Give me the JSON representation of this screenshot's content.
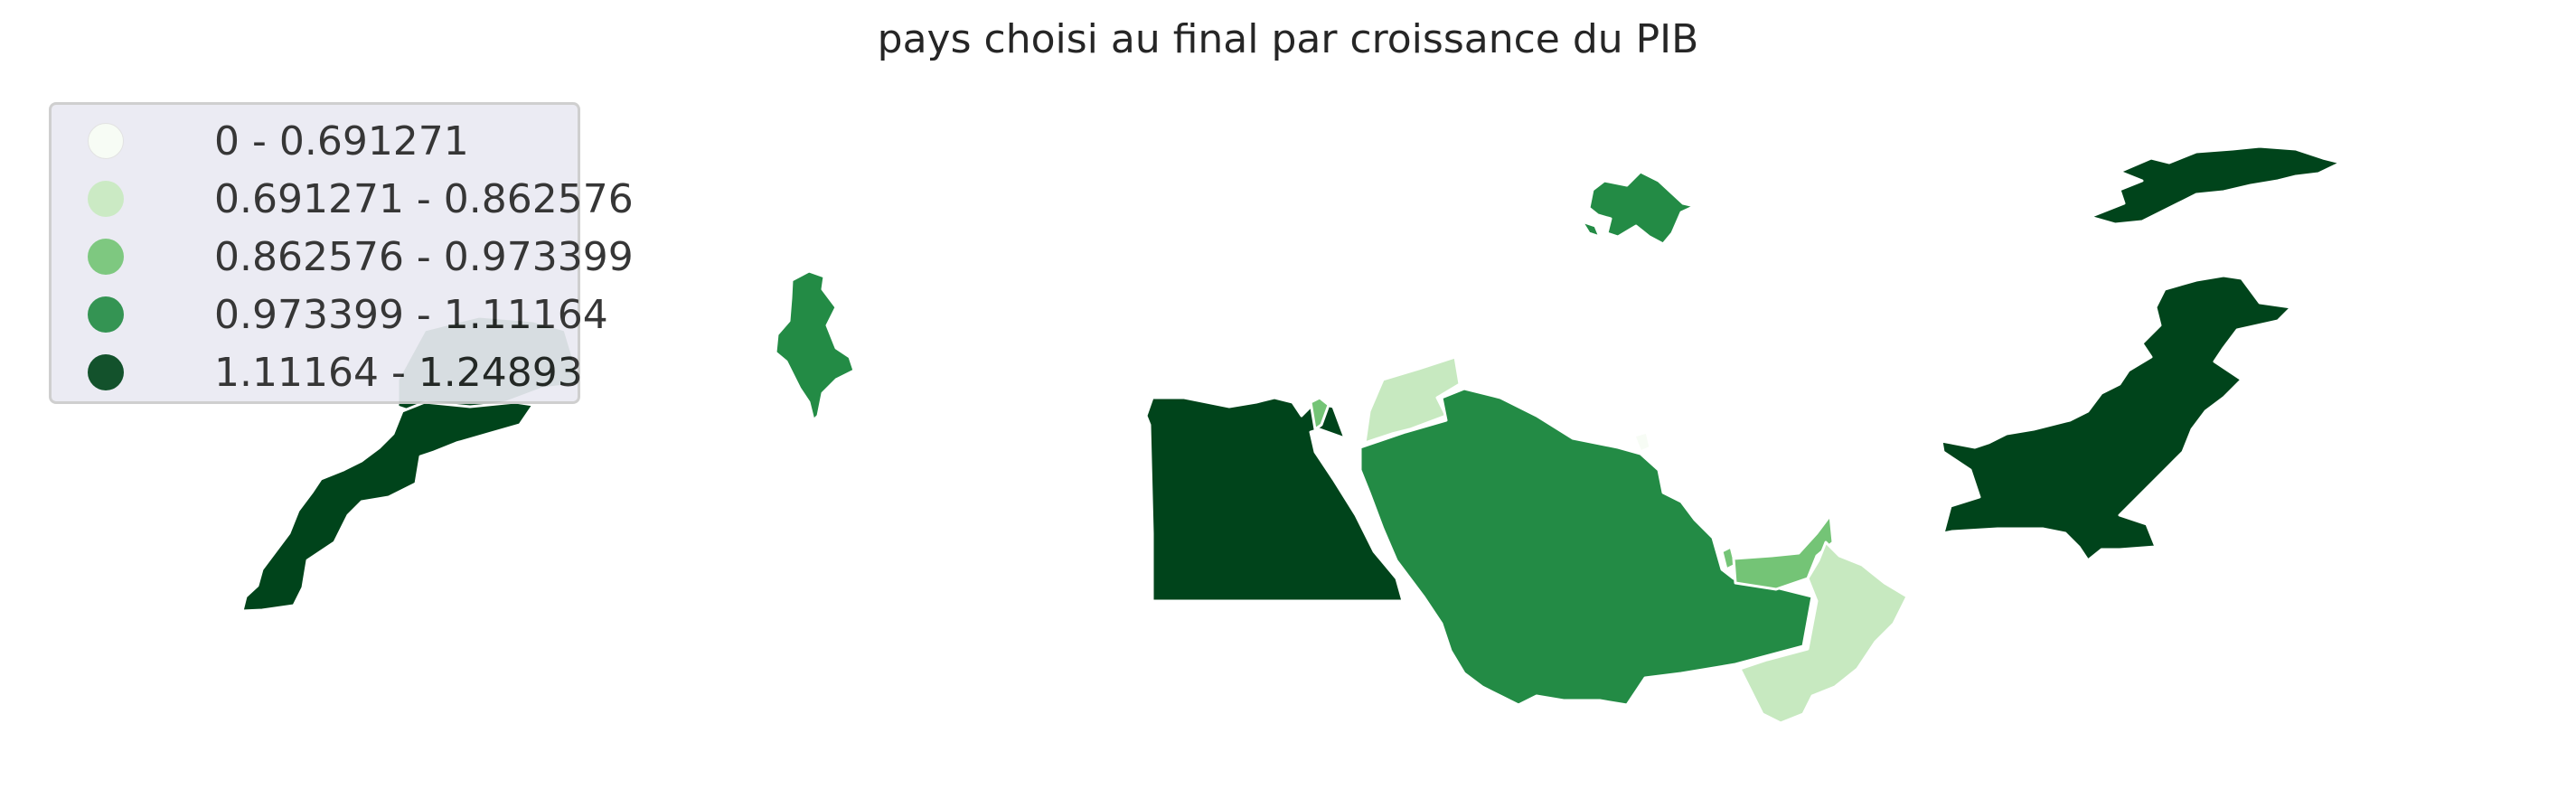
{
  "title": "pays choisi au final par croissance du PIB",
  "legend": [
    {
      "label": "0 - 0.691271",
      "color": "#f7fcf5"
    },
    {
      "label": "0.691271 - 0.862576",
      "color": "#c7e9c0"
    },
    {
      "label": "0.862576 - 0.973399",
      "color": "#74c476"
    },
    {
      "label": "0.973399 - 1.11164",
      "color": "#238b45"
    },
    {
      "label": "1.11164 - 1.24893",
      "color": "#00441b"
    }
  ],
  "regions": [
    {
      "id": "morocco",
      "class_index": 4
    },
    {
      "id": "western-sahara",
      "class_index": 4
    },
    {
      "id": "tunisia",
      "class_index": 3
    },
    {
      "id": "egypt",
      "class_index": 4
    },
    {
      "id": "israel",
      "class_index": 2
    },
    {
      "id": "jordan",
      "class_index": 1
    },
    {
      "id": "saudi-arabia",
      "class_index": 3
    },
    {
      "id": "kuwait",
      "class_index": 0
    },
    {
      "id": "qatar",
      "class_index": 2
    },
    {
      "id": "uae",
      "class_index": 2
    },
    {
      "id": "oman",
      "class_index": 1
    },
    {
      "id": "azerbaijan",
      "class_index": 3
    },
    {
      "id": "kazakhstan",
      "class_index": 4
    },
    {
      "id": "pakistan",
      "class_index": 4
    }
  ]
}
